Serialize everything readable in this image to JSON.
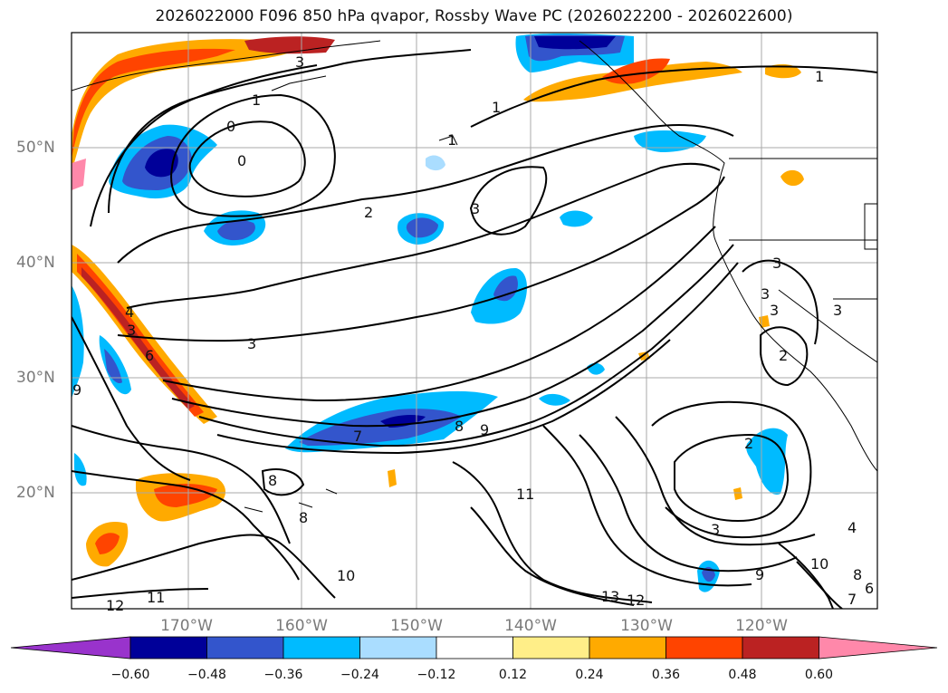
{
  "title": "2026022000 F096 850 hPa qvapor, Rossby Wave PC (2026022200 - 2026022600)",
  "lat_labels": [
    "50°N",
    "40°N",
    "30°N",
    "20°N"
  ],
  "lon_labels": [
    "170°W",
    "160°W",
    "150°W",
    "140°W",
    "130°W",
    "120°W"
  ],
  "colorbar": {
    "colors": [
      "#9933cc",
      "#000099",
      "#3355cc",
      "#00bbff",
      "#aaddff",
      "#ffffff",
      "#ffee88",
      "#ffaa00",
      "#ff4400",
      "#bb2222",
      "#ff88aa"
    ],
    "tick_labels": [
      "−0.60",
      "−0.48",
      "−0.36",
      "−0.24",
      "−0.12",
      "0.12",
      "0.24",
      "0.36",
      "0.48",
      "0.60"
    ]
  },
  "contour_labels": [
    "3",
    "1",
    "1",
    "0",
    "0",
    "2",
    "3",
    "3",
    "1",
    "3",
    "3",
    "4",
    "6",
    "7",
    "8",
    "9",
    "8",
    "8",
    "11",
    "10",
    "11",
    "12",
    "13",
    "12",
    "2",
    "3",
    "9",
    "10",
    "7",
    "8",
    "6",
    "4",
    "1",
    "3",
    "2",
    "3",
    "3",
    "9"
  ]
}
